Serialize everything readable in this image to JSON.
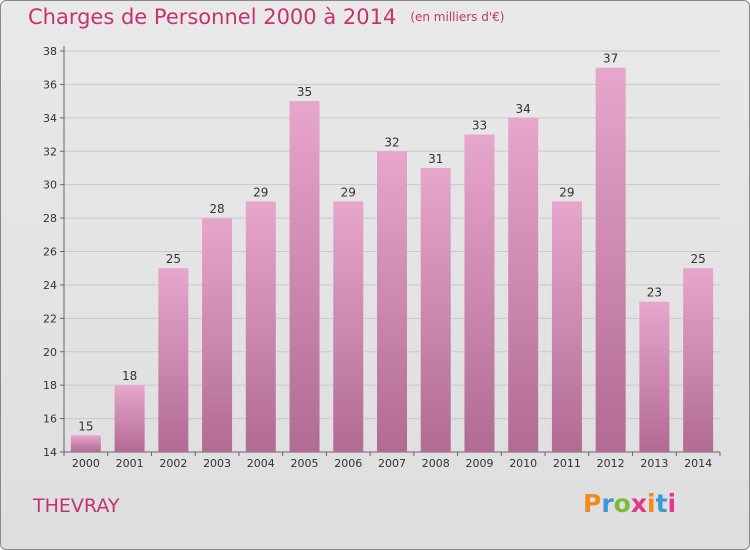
{
  "header": {
    "title": "Charges de Personnel 2000 à 2014",
    "subtitle": "(en milliers d'€)"
  },
  "footer": {
    "city": "THEVRAY",
    "logo": "Proxiti"
  },
  "colors": {
    "accent": "#c4336f",
    "bar_top": "#e7a6cc",
    "bar_bottom": "#b26b93",
    "logo_letters": [
      "#f0891e",
      "#3b9ad6",
      "#7cbb3c",
      "#e6368a",
      "#f0891e",
      "#3b9ad6",
      "#e6368a"
    ]
  },
  "chart_data": {
    "type": "bar",
    "categories": [
      "2000",
      "2001",
      "2002",
      "2003",
      "2004",
      "2005",
      "2006",
      "2007",
      "2008",
      "2009",
      "2010",
      "2011",
      "2012",
      "2013",
      "2014"
    ],
    "values": [
      15,
      18,
      25,
      28,
      29,
      35,
      29,
      32,
      31,
      33,
      34,
      29,
      37,
      23,
      25
    ],
    "title": "Charges de Personnel 2000 à 2014",
    "subtitle": "(en milliers d'€)",
    "xlabel": "",
    "ylabel": "",
    "ylim": [
      14,
      38
    ],
    "yticks": [
      14,
      16,
      18,
      20,
      22,
      24,
      26,
      28,
      30,
      32,
      34,
      36,
      38
    ],
    "grid": true,
    "legend": "none"
  }
}
